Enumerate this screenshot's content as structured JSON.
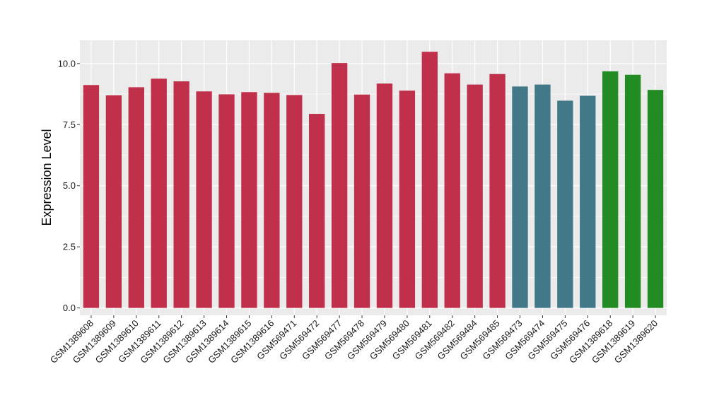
{
  "chart_data": {
    "type": "bar",
    "title": "",
    "xlabel": "",
    "ylabel": "Expression Level",
    "ylim": [
      -0.3,
      10.95
    ],
    "yticks": [
      0.0,
      2.5,
      5.0,
      7.5,
      10.0
    ],
    "ytick_labels": [
      "0.0",
      "2.5",
      "5.0",
      "7.5",
      "10.0"
    ],
    "grid": true,
    "panel_background": "#EBEBEB",
    "grid_color": "#FFFFFF",
    "categories": [
      "GSM1389608",
      "GSM1389609",
      "GSM1389610",
      "GSM1389611",
      "GSM1389612",
      "GSM1389613",
      "GSM1389614",
      "GSM1389615",
      "GSM1389616",
      "GSM569471",
      "GSM569472",
      "GSM569477",
      "GSM569478",
      "GSM569479",
      "GSM569480",
      "GSM569481",
      "GSM569482",
      "GSM569484",
      "GSM569485",
      "GSM569473",
      "GSM569474",
      "GSM569475",
      "GSM569476",
      "GSM1389618",
      "GSM1389619",
      "GSM1389620"
    ],
    "values": [
      9.12,
      8.7,
      9.03,
      9.38,
      9.27,
      8.86,
      8.74,
      8.83,
      8.8,
      8.71,
      7.94,
      10.02,
      8.73,
      9.18,
      8.89,
      10.48,
      9.6,
      9.14,
      9.57,
      9.06,
      9.14,
      8.48,
      8.68,
      9.68,
      9.54,
      8.92
    ],
    "bar_colors": [
      "#C0304A",
      "#C0304A",
      "#C0304A",
      "#C0304A",
      "#C0304A",
      "#C0304A",
      "#C0304A",
      "#C0304A",
      "#C0304A",
      "#C0304A",
      "#C0304A",
      "#C0304A",
      "#C0304A",
      "#C0304A",
      "#C0304A",
      "#C0304A",
      "#C0304A",
      "#C0304A",
      "#C0304A",
      "#437888",
      "#437888",
      "#437888",
      "#437888",
      "#238B23",
      "#238B23",
      "#238B23"
    ]
  }
}
